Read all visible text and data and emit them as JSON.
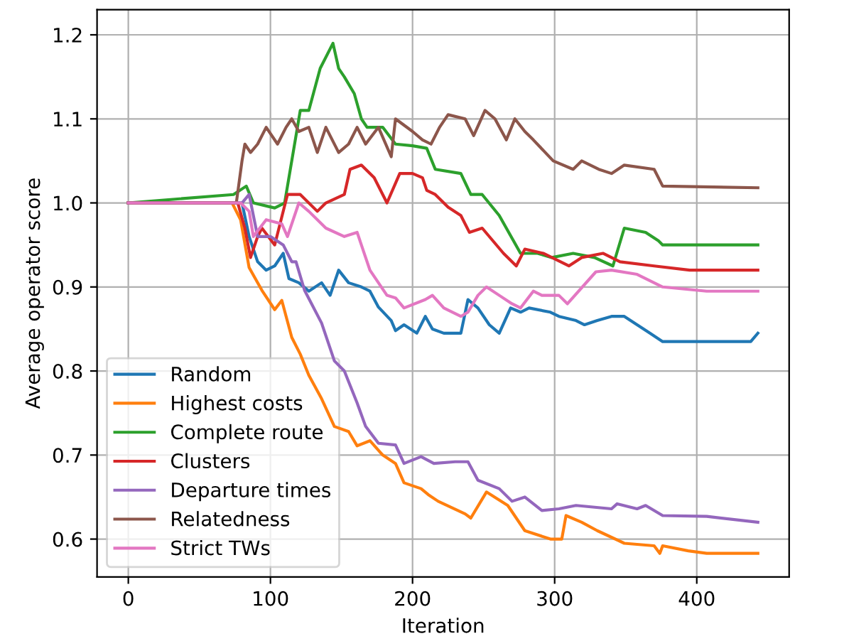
{
  "chart_data": {
    "type": "line",
    "xlabel": "Iteration",
    "ylabel": "Average operator score",
    "xlim": [
      -22,
      465
    ],
    "ylim": [
      0.555,
      1.23
    ],
    "xticks": [
      0,
      100,
      200,
      300,
      400
    ],
    "yticks": [
      0.6,
      0.7,
      0.8,
      0.9,
      {
        "value": 1.0,
        "label": "1.0"
      },
      1.1,
      1.2
    ],
    "grid": true,
    "legend": "bottom left",
    "line_style": "solid",
    "marker": "none",
    "series": [
      {
        "name": "Random",
        "color": "#1f77b4",
        "x": [
          0,
          80,
          85,
          91,
          97,
          103,
          109,
          113,
          120,
          127,
          136,
          142,
          148,
          155,
          164,
          170,
          176,
          185,
          188,
          194,
          203,
          209,
          214,
          222,
          234,
          239,
          246,
          254,
          261,
          269,
          276,
          282,
          297,
          303,
          315,
          321,
          330,
          340,
          349,
          358,
          367,
          376,
          394,
          407,
          438,
          443
        ],
        "values": [
          1.0,
          1.0,
          0.96,
          0.93,
          0.92,
          0.925,
          0.94,
          0.91,
          0.905,
          0.895,
          0.905,
          0.89,
          0.92,
          0.905,
          0.9,
          0.895,
          0.876,
          0.86,
          0.848,
          0.855,
          0.845,
          0.865,
          0.85,
          0.845,
          0.845,
          0.885,
          0.875,
          0.855,
          0.845,
          0.875,
          0.87,
          0.875,
          0.87,
          0.865,
          0.86,
          0.855,
          0.86,
          0.865,
          0.865,
          0.855,
          0.845,
          0.835,
          0.835,
          0.835,
          0.835,
          0.845
        ]
      },
      {
        "name": "Highest costs",
        "color": "#ff7f0e",
        "x": [
          0,
          73,
          79,
          85,
          94,
          103,
          108,
          115,
          121,
          127,
          136,
          145,
          155,
          161,
          170,
          179,
          188,
          194,
          206,
          211,
          218,
          237,
          241,
          252,
          267,
          279,
          297,
          305,
          308,
          319,
          330,
          349,
          370,
          374,
          376,
          394,
          407,
          443
        ],
        "values": [
          1.0,
          1.0,
          0.98,
          0.923,
          0.896,
          0.873,
          0.884,
          0.84,
          0.82,
          0.795,
          0.767,
          0.734,
          0.728,
          0.711,
          0.717,
          0.7,
          0.69,
          0.667,
          0.66,
          0.653,
          0.645,
          0.63,
          0.625,
          0.656,
          0.64,
          0.61,
          0.6,
          0.6,
          0.628,
          0.62,
          0.61,
          0.595,
          0.592,
          0.583,
          0.592,
          0.586,
          0.583,
          0.583
        ]
      },
      {
        "name": "Complete route",
        "color": "#2ca02c",
        "x": [
          0,
          74,
          83,
          88,
          103,
          110,
          115,
          121,
          127,
          135,
          144,
          148,
          152,
          159,
          164,
          168,
          179,
          188,
          200,
          210,
          216,
          234,
          241,
          249,
          261,
          276,
          288,
          298,
          313,
          328,
          341,
          349,
          364,
          373,
          376,
          443
        ],
        "values": [
          1.0,
          1.01,
          1.02,
          1.0,
          0.994,
          1.0,
          1.05,
          1.11,
          1.11,
          1.16,
          1.19,
          1.16,
          1.15,
          1.13,
          1.1,
          1.09,
          1.09,
          1.07,
          1.068,
          1.065,
          1.04,
          1.035,
          1.01,
          1.01,
          0.985,
          0.94,
          0.94,
          0.935,
          0.94,
          0.935,
          0.925,
          0.97,
          0.965,
          0.955,
          0.95,
          0.95
        ]
      },
      {
        "name": "Clusters",
        "color": "#d62728",
        "x": [
          0,
          77,
          82,
          86,
          91,
          94,
          103,
          109,
          112,
          121,
          133,
          139,
          152,
          156,
          164,
          173,
          182,
          191,
          200,
          207,
          210,
          216,
          225,
          234,
          240,
          249,
          264,
          273,
          279,
          292,
          310,
          319,
          334,
          346,
          370,
          395,
          443
        ],
        "values": [
          1.0,
          1.0,
          0.97,
          0.935,
          0.96,
          0.97,
          0.95,
          0.99,
          1.01,
          1.01,
          0.99,
          1.0,
          1.01,
          1.04,
          1.045,
          1.03,
          1.0,
          1.035,
          1.035,
          1.03,
          1.015,
          1.01,
          0.995,
          0.985,
          0.965,
          0.97,
          0.94,
          0.925,
          0.945,
          0.94,
          0.925,
          0.935,
          0.94,
          0.93,
          0.925,
          0.92,
          0.92
        ]
      },
      {
        "name": "Departure times",
        "color": "#9467bd",
        "x": [
          0,
          80,
          85,
          91,
          100,
          109,
          115,
          118,
          124,
          136,
          145,
          152,
          161,
          167,
          176,
          188,
          194,
          206,
          215,
          230,
          239,
          246,
          261,
          270,
          279,
          291,
          303,
          315,
          340,
          344,
          358,
          364,
          376,
          407,
          443
        ],
        "values": [
          1.0,
          1.0,
          1.01,
          0.96,
          0.96,
          0.95,
          0.93,
          0.93,
          0.896,
          0.857,
          0.812,
          0.8,
          0.762,
          0.734,
          0.714,
          0.712,
          0.69,
          0.698,
          0.69,
          0.692,
          0.692,
          0.67,
          0.66,
          0.645,
          0.65,
          0.634,
          0.636,
          0.64,
          0.636,
          0.642,
          0.636,
          0.64,
          0.628,
          0.627,
          0.62
        ]
      },
      {
        "name": "Relatedness",
        "color": "#8c564b",
        "x": [
          0,
          76,
          80,
          82,
          86,
          91,
          97,
          105,
          111,
          115,
          120,
          127,
          133,
          139,
          148,
          155,
          161,
          167,
          176,
          185,
          188,
          200,
          207,
          213,
          219,
          225,
          237,
          243,
          251,
          258,
          266,
          272,
          279,
          285,
          299,
          313,
          319,
          331,
          340,
          349,
          370,
          376,
          443
        ],
        "values": [
          1.0,
          1.0,
          1.05,
          1.07,
          1.06,
          1.07,
          1.09,
          1.07,
          1.09,
          1.1,
          1.085,
          1.09,
          1.06,
          1.09,
          1.06,
          1.07,
          1.09,
          1.07,
          1.09,
          1.055,
          1.1,
          1.085,
          1.075,
          1.07,
          1.09,
          1.105,
          1.1,
          1.08,
          1.11,
          1.1,
          1.075,
          1.1,
          1.085,
          1.075,
          1.05,
          1.04,
          1.05,
          1.04,
          1.035,
          1.045,
          1.04,
          1.02,
          1.018
        ]
      },
      {
        "name": "Strict TWs",
        "color": "#e377c2",
        "x": [
          0,
          79,
          85,
          88,
          97,
          108,
          112,
          120,
          127,
          139,
          152,
          161,
          170,
          182,
          188,
          194,
          209,
          214,
          222,
          234,
          239,
          246,
          252,
          261,
          270,
          276,
          285,
          291,
          303,
          309,
          329,
          340,
          358,
          376,
          407,
          443
        ],
        "values": [
          1.0,
          1.0,
          0.99,
          0.96,
          0.98,
          0.975,
          0.96,
          1.0,
          0.99,
          0.97,
          0.96,
          0.965,
          0.92,
          0.89,
          0.887,
          0.875,
          0.885,
          0.89,
          0.875,
          0.865,
          0.87,
          0.89,
          0.9,
          0.89,
          0.88,
          0.875,
          0.895,
          0.89,
          0.89,
          0.88,
          0.918,
          0.92,
          0.915,
          0.9,
          0.895,
          0.895
        ]
      }
    ]
  }
}
